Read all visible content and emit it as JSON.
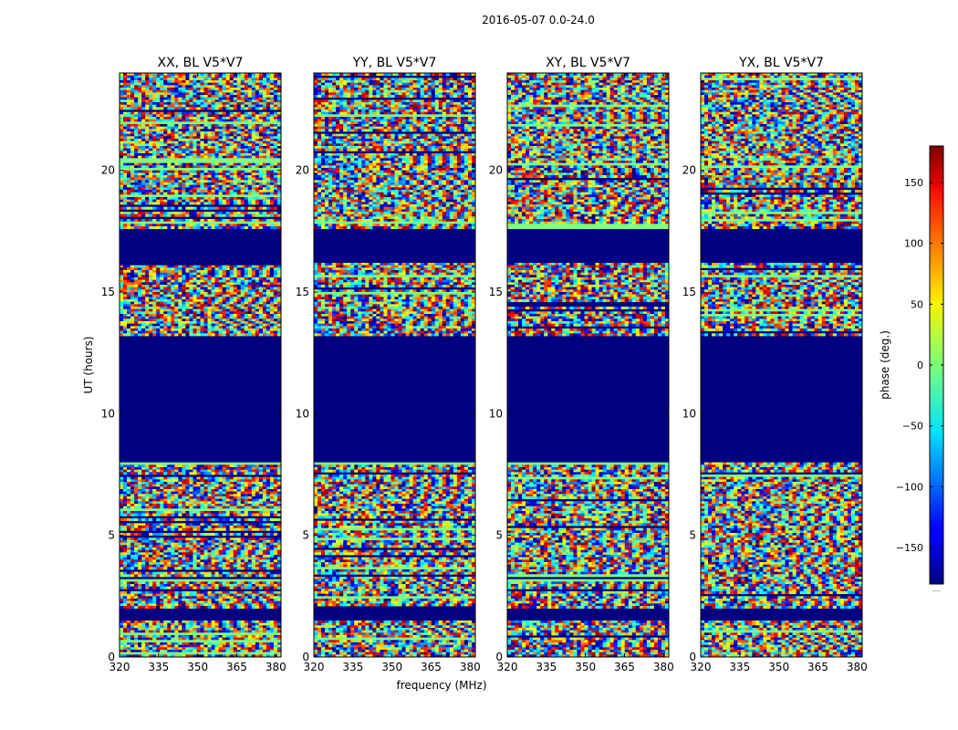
{
  "figure": {
    "suptitle": "2016-05-07 0.0-24.0"
  },
  "chart_data": {
    "type": "heatmap",
    "suptitle": "2016-05-07 0.0-24.0",
    "xlabel": "frequency (MHz)",
    "ylabel": "UT (hours)",
    "xlim": [
      320,
      382
    ],
    "ylim": [
      0,
      24
    ],
    "xticks": [
      320,
      335,
      350,
      365,
      380
    ],
    "yticks": [
      0,
      5,
      10,
      15,
      20
    ],
    "panels": [
      {
        "title": "XX, BL V5*V7"
      },
      {
        "title": "YY, BL V5*V7"
      },
      {
        "title": "XY, BL V5*V7"
      },
      {
        "title": "YX, BL V5*V7"
      }
    ],
    "colorbar": {
      "label": "phase (deg.)",
      "range": [
        -180,
        180
      ],
      "ticks": [
        -150,
        -100,
        -50,
        0,
        50,
        100,
        150
      ],
      "colormap": "jet"
    },
    "flagged_ut_ranges": [
      [
        1.5,
        2.0
      ],
      [
        8.0,
        13.2
      ],
      [
        16.2,
        17.6
      ]
    ],
    "flagged_value": -180,
    "bottom_label": "....."
  }
}
